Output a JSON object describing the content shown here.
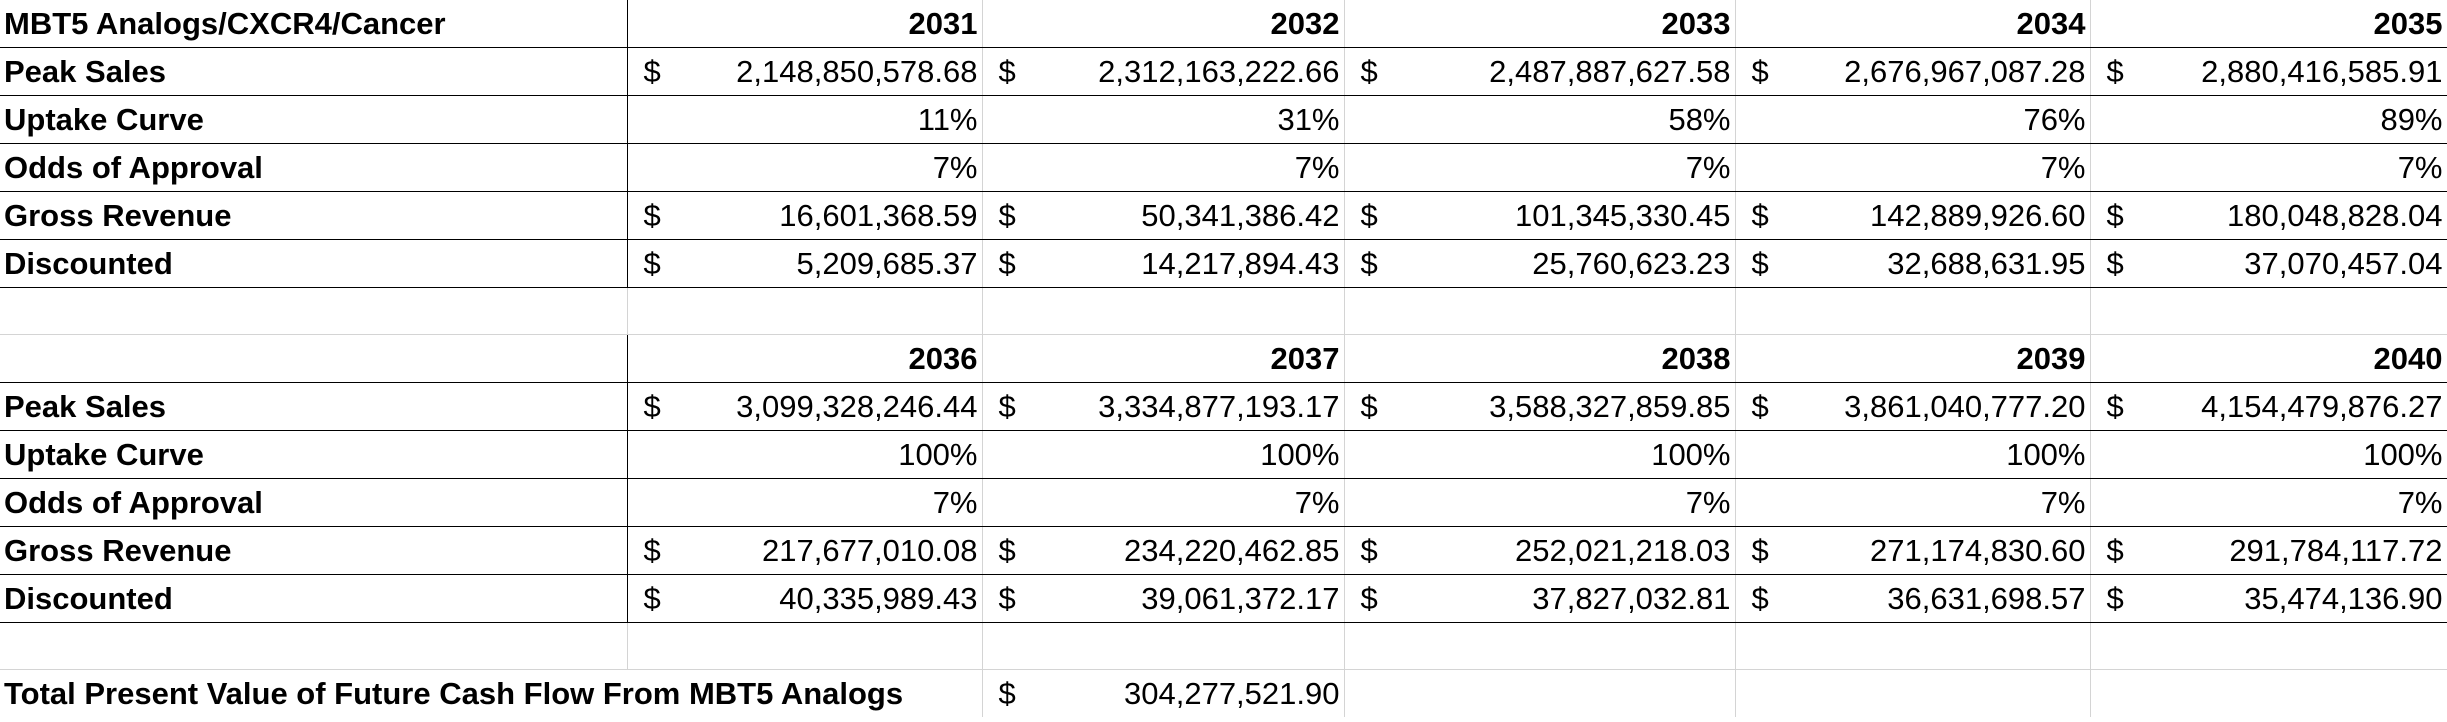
{
  "sheet": {
    "title": "MBT5 Analogs/CXCR4/Cancer",
    "currency_symbol": "$",
    "row_labels": {
      "peak_sales": "Peak Sales",
      "uptake_curve": "Uptake Curve",
      "odds_of_approval": "Odds of Approval",
      "gross_revenue": "Gross Revenue",
      "discounted": "Discounted"
    },
    "blocks": [
      {
        "years": [
          "2031",
          "2032",
          "2033",
          "2034",
          "2035"
        ],
        "peak_sales": [
          "2,148,850,578.68",
          "2,312,163,222.66",
          "2,487,887,627.58",
          "2,676,967,087.28",
          "2,880,416,585.91"
        ],
        "uptake_curve": [
          "11%",
          "31%",
          "58%",
          "76%",
          "89%"
        ],
        "odds_of_approval": [
          "7%",
          "7%",
          "7%",
          "7%",
          "7%"
        ],
        "gross_revenue": [
          "16,601,368.59",
          "50,341,386.42",
          "101,345,330.45",
          "142,889,926.60",
          "180,048,828.04"
        ],
        "discounted": [
          "5,209,685.37",
          "14,217,894.43",
          "25,760,623.23",
          "32,688,631.95",
          "37,070,457.04"
        ]
      },
      {
        "years": [
          "2036",
          "2037",
          "2038",
          "2039",
          "2040"
        ],
        "peak_sales": [
          "3,099,328,246.44",
          "3,334,877,193.17",
          "3,588,327,859.85",
          "3,861,040,777.20",
          "4,154,479,876.27"
        ],
        "uptake_curve": [
          "100%",
          "100%",
          "100%",
          "100%",
          "100%"
        ],
        "odds_of_approval": [
          "7%",
          "7%",
          "7%",
          "7%",
          "7%"
        ],
        "gross_revenue": [
          "217,677,010.08",
          "234,220,462.85",
          "252,021,218.03",
          "271,174,830.60",
          "291,784,117.72"
        ],
        "discounted": [
          "40,335,989.43",
          "39,061,372.17",
          "37,827,032.81",
          "36,631,698.57",
          "35,474,136.90"
        ]
      }
    ],
    "total": {
      "label": "Total Present Value of Future Cash Flow From MBT5 Analogs",
      "value": "304,277,521.90"
    }
  }
}
